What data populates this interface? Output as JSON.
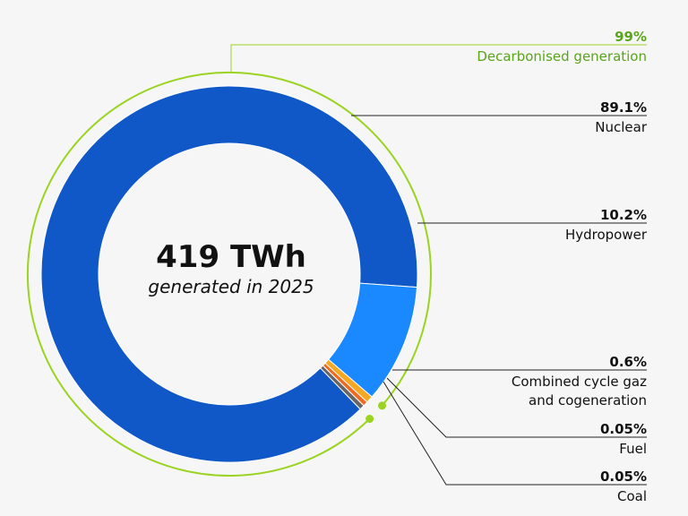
{
  "chart_data": {
    "type": "pie",
    "center_value": "419 TWh",
    "center_caption": "generated in 2025",
    "group": {
      "label": "Decarbonised generation",
      "value_label": "99%",
      "color": "#9bd321",
      "text_color": "#5aa51c"
    },
    "slices": [
      {
        "label": "Nuclear",
        "value_label": "89.1%",
        "value": 89.1,
        "color": "#1058c8"
      },
      {
        "label": "Hydropower",
        "value_label": "10.2%",
        "value": 10.2,
        "color": "#1a88ff"
      },
      {
        "label": "Combined cycle gaz\nand cogeneration",
        "value_label": "0.6%",
        "value": 0.6,
        "color": "#f7a823"
      },
      {
        "label": "Fuel",
        "value_label": "0.05%",
        "value": 0.05,
        "color": "#f06a22"
      },
      {
        "label": "Coal",
        "value_label": "0.05%",
        "value": 0.05,
        "color": "#666666"
      }
    ]
  }
}
